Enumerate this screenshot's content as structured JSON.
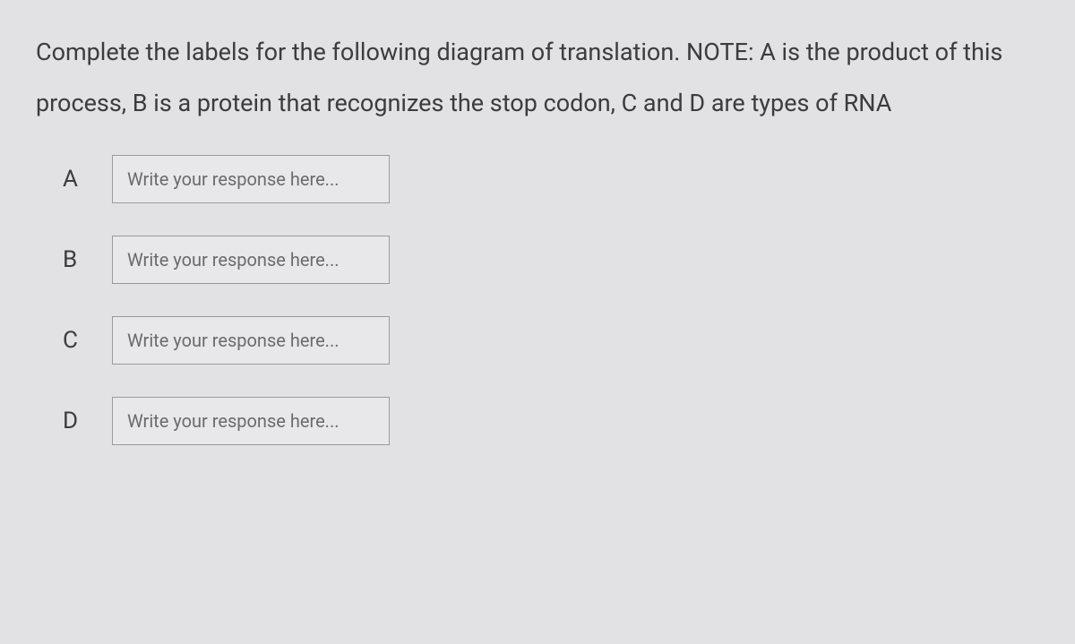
{
  "question": {
    "text": "Complete the labels for the following diagram of translation. NOTE: A is the product of this process, B is a protein that recognizes the stop codon, C and D are types of RNA"
  },
  "rows": [
    {
      "label": "A",
      "placeholder": "Write your response here..."
    },
    {
      "label": "B",
      "placeholder": "Write your response here..."
    },
    {
      "label": "C",
      "placeholder": "Write your response here..."
    },
    {
      "label": "D",
      "placeholder": "Write your response here..."
    }
  ],
  "colors": {
    "background": "#e2e2e4",
    "text": "#3c3c3e",
    "input_border": "#9a9a9c",
    "input_bg": "#e8e8ea",
    "placeholder": "#6b6b6d"
  }
}
